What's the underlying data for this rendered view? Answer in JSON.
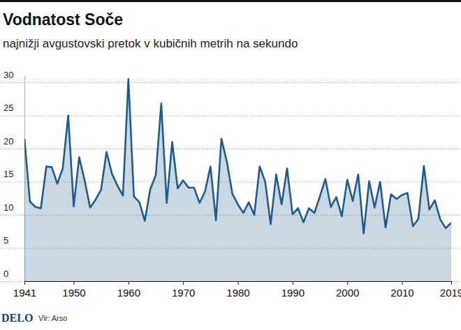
{
  "chart_data": {
    "type": "area",
    "title": "Vodnatost Soče",
    "subtitle": "najnižji avgustovski pretok v kubičnih metrih na sekundo",
    "publisher": "DELO",
    "source": "Vir: Arso",
    "color": "#1f5b8c",
    "grid": true,
    "x": [
      1941,
      1942,
      1943,
      1944,
      1945,
      1946,
      1947,
      1948,
      1949,
      1950,
      1951,
      1952,
      1953,
      1954,
      1955,
      1956,
      1957,
      1958,
      1959,
      1960,
      1961,
      1962,
      1963,
      1964,
      1965,
      1966,
      1967,
      1968,
      1969,
      1970,
      1971,
      1972,
      1973,
      1974,
      1975,
      1976,
      1977,
      1978,
      1979,
      1980,
      1981,
      1982,
      1983,
      1984,
      1985,
      1986,
      1987,
      1988,
      1989,
      1990,
      1991,
      1992,
      1993,
      1994,
      1995,
      1996,
      1997,
      1998,
      1999,
      2000,
      2001,
      2002,
      2003,
      2004,
      2005,
      2006,
      2007,
      2008,
      2009,
      2010,
      2011,
      2012,
      2013,
      2014,
      2015,
      2016,
      2017,
      2018,
      2019
    ],
    "values": [
      21.5,
      12,
      11.2,
      11,
      17.3,
      17.2,
      14.7,
      17,
      25,
      11.3,
      18.7,
      15.2,
      11.1,
      12.3,
      13.8,
      19.5,
      16.2,
      14.4,
      12.9,
      30.5,
      12.8,
      11.9,
      9.1,
      13.9,
      16,
      26.8,
      11.8,
      21,
      14,
      15.2,
      14.1,
      14.1,
      11.8,
      13.5,
      17.3,
      9.2,
      21.5,
      18,
      13.2,
      11.6,
      10.3,
      11.9,
      10,
      17.3,
      15,
      8.6,
      16.1,
      11.6,
      17,
      10.1,
      11,
      8.9,
      11,
      10.3,
      12.8,
      15.4,
      11.2,
      12.7,
      9.8,
      15.3,
      12.1,
      16.1,
      7.2,
      15.1,
      11.1,
      15,
      8.1,
      13.1,
      12.4,
      13,
      13.3,
      8.3,
      9.4,
      17.4,
      10.8,
      12.2,
      9.3,
      8,
      8.8
    ],
    "xlim": [
      1941,
      2019
    ],
    "xticks": [
      1941,
      1950,
      1960,
      1970,
      1980,
      1990,
      2000,
      2010,
      2019
    ],
    "ylim": [
      0,
      31
    ],
    "yticks": [
      0,
      5,
      10,
      15,
      20,
      25,
      30
    ]
  }
}
